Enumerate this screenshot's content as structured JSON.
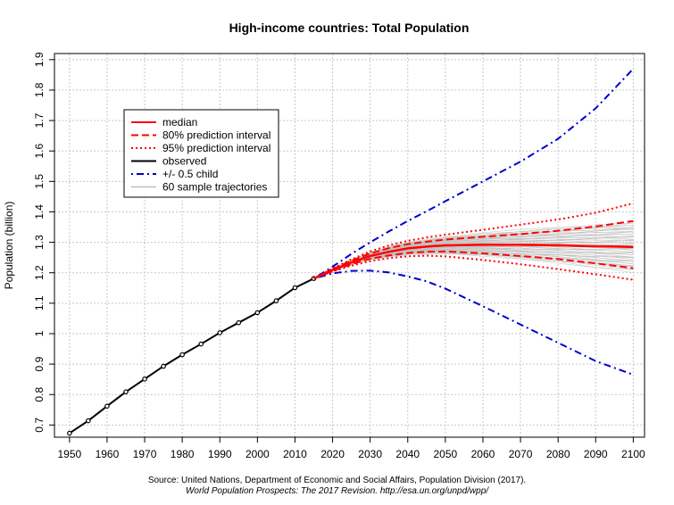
{
  "chart_data": {
    "type": "line",
    "title": "High-income countries: Total Population",
    "xlabel": "",
    "ylabel": "Population (billion)",
    "xlim": [
      1946,
      2103
    ],
    "ylim": [
      0.66,
      1.92
    ],
    "x_ticks": [
      1950,
      1960,
      1970,
      1980,
      1990,
      2000,
      2010,
      2020,
      2030,
      2040,
      2050,
      2060,
      2070,
      2080,
      2090,
      2100
    ],
    "y_ticks": [
      0.7,
      0.8,
      0.9,
      1.0,
      1.1,
      1.2,
      1.3,
      1.4,
      1.5,
      1.6,
      1.7,
      1.8,
      1.9
    ],
    "y_tick_labels": [
      "0.7",
      "0.8",
      "0.9",
      "1",
      "1.1",
      "1.2",
      "1.3",
      "1.4",
      "1.5",
      "1.6",
      "1.7",
      "1.8",
      "1.9"
    ],
    "grid": true,
    "legend_position": "top-left",
    "legend": [
      {
        "label": "median",
        "color": "#ff0000",
        "dash": "solid"
      },
      {
        "label": "80% prediction interval",
        "color": "#ff0000",
        "dash": "dashed"
      },
      {
        "label": "95% prediction interval",
        "color": "#ff0000",
        "dash": "dotted"
      },
      {
        "label": "observed",
        "color": "#000000",
        "dash": "solid"
      },
      {
        "label": "+/- 0.5 child",
        "color": "#0000cc",
        "dash": "dotdash"
      },
      {
        "label": "60 sample trajectories",
        "color": "#bebebe",
        "dash": "solid"
      }
    ],
    "series": [
      {
        "name": "observed",
        "color": "#000000",
        "dash": "solid",
        "markers": true,
        "x": [
          1950,
          1955,
          1960,
          1965,
          1970,
          1975,
          1980,
          1985,
          1990,
          1995,
          2000,
          2005,
          2010,
          2015
        ],
        "values": [
          0.673,
          0.714,
          0.762,
          0.809,
          0.851,
          0.893,
          0.931,
          0.966,
          1.003,
          1.036,
          1.069,
          1.108,
          1.151,
          1.181
        ]
      },
      {
        "name": "median",
        "color": "#ff0000",
        "dash": "solid",
        "x": [
          2015,
          2020,
          2025,
          2030,
          2035,
          2040,
          2045,
          2050,
          2060,
          2070,
          2080,
          2090,
          2100
        ],
        "values": [
          1.181,
          1.209,
          1.234,
          1.255,
          1.269,
          1.28,
          1.286,
          1.29,
          1.292,
          1.292,
          1.29,
          1.287,
          1.285
        ]
      },
      {
        "name": "80% prediction interval (upper)",
        "color": "#ff0000",
        "dash": "dashed",
        "x": [
          2015,
          2020,
          2025,
          2030,
          2035,
          2040,
          2045,
          2050,
          2060,
          2070,
          2080,
          2090,
          2100
        ],
        "values": [
          1.181,
          1.212,
          1.24,
          1.263,
          1.281,
          1.294,
          1.302,
          1.309,
          1.318,
          1.327,
          1.338,
          1.352,
          1.37
        ]
      },
      {
        "name": "80% prediction interval (lower)",
        "color": "#ff0000",
        "dash": "dashed",
        "x": [
          2015,
          2020,
          2025,
          2030,
          2035,
          2040,
          2045,
          2050,
          2060,
          2070,
          2080,
          2090,
          2100
        ],
        "values": [
          1.181,
          1.206,
          1.228,
          1.246,
          1.257,
          1.265,
          1.269,
          1.27,
          1.264,
          1.255,
          1.245,
          1.231,
          1.215
        ]
      },
      {
        "name": "95% prediction interval (upper)",
        "color": "#ff0000",
        "dash": "dotted",
        "x": [
          2015,
          2020,
          2025,
          2030,
          2035,
          2040,
          2045,
          2050,
          2060,
          2070,
          2080,
          2090,
          2100
        ],
        "values": [
          1.181,
          1.214,
          1.244,
          1.27,
          1.29,
          1.305,
          1.316,
          1.325,
          1.341,
          1.358,
          1.375,
          1.397,
          1.428
        ]
      },
      {
        "name": "95% prediction interval (lower)",
        "color": "#ff0000",
        "dash": "dotted",
        "x": [
          2015,
          2020,
          2025,
          2030,
          2035,
          2040,
          2045,
          2050,
          2060,
          2070,
          2080,
          2090,
          2100
        ],
        "values": [
          1.181,
          1.204,
          1.223,
          1.238,
          1.248,
          1.254,
          1.256,
          1.254,
          1.242,
          1.228,
          1.212,
          1.195,
          1.177
        ]
      },
      {
        "name": "+/- 0.5 child (upper)",
        "color": "#0000cc",
        "dash": "dotdash",
        "x": [
          2015,
          2020,
          2025,
          2030,
          2035,
          2040,
          2045,
          2050,
          2060,
          2070,
          2080,
          2090,
          2100
        ],
        "values": [
          1.181,
          1.22,
          1.262,
          1.3,
          1.336,
          1.37,
          1.402,
          1.435,
          1.5,
          1.565,
          1.64,
          1.74,
          1.87
        ]
      },
      {
        "name": "+/- 0.5 child (lower)",
        "color": "#0000cc",
        "dash": "dotdash",
        "x": [
          2015,
          2020,
          2025,
          2030,
          2035,
          2040,
          2045,
          2050,
          2060,
          2070,
          2080,
          2090,
          2100
        ],
        "values": [
          1.181,
          1.198,
          1.206,
          1.207,
          1.201,
          1.188,
          1.172,
          1.148,
          1.09,
          1.03,
          0.97,
          0.91,
          0.865
        ]
      }
    ],
    "sample_trajectories": {
      "count": 60,
      "color": "#bebebe",
      "x": [
        2015,
        2020,
        2025,
        2030,
        2035,
        2040,
        2045,
        2050,
        2060,
        2070,
        2080,
        2090,
        2100
      ],
      "center": [
        1.181,
        1.209,
        1.234,
        1.255,
        1.269,
        1.28,
        1.286,
        1.29,
        1.292,
        1.292,
        1.29,
        1.287,
        1.285
      ],
      "spread": [
        0.0,
        0.004,
        0.008,
        0.012,
        0.016,
        0.02,
        0.024,
        0.028,
        0.038,
        0.048,
        0.058,
        0.07,
        0.082
      ]
    }
  },
  "source": {
    "line1": "Source: United Nations, Department of Economic and Social Affairs, Population Division (2017).",
    "line2": "World Population Prospects: The 2017 Revision. http://esa.un.org/unpd/wpp/"
  }
}
